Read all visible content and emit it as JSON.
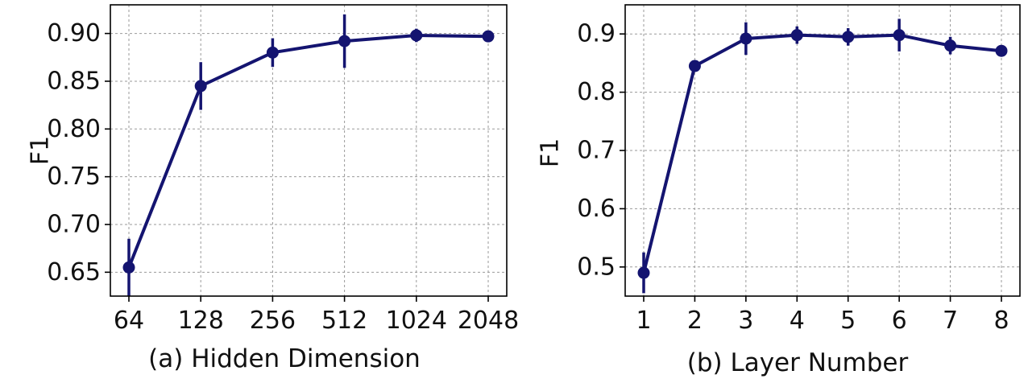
{
  "series_color": "#141470",
  "chart_data": [
    {
      "type": "line",
      "categories": [
        "64",
        "128",
        "256",
        "512",
        "1024",
        "2048"
      ],
      "values": [
        0.655,
        0.845,
        0.88,
        0.892,
        0.898,
        0.897
      ],
      "errors": [
        0.03,
        0.025,
        0.015,
        0.028,
        0.007,
        0.005
      ],
      "ylim": [
        0.625,
        0.93
      ],
      "yticks": [
        0.65,
        0.7,
        0.75,
        0.8,
        0.85,
        0.9
      ],
      "ytick_labels": [
        "0.65",
        "0.70",
        "0.75",
        "0.80",
        "0.85",
        "0.90"
      ],
      "ylabel": "F1",
      "xlabel": "(a) Hidden Dimension",
      "grid": true
    },
    {
      "type": "line",
      "categories": [
        "1",
        "2",
        "3",
        "4",
        "5",
        "6",
        "7",
        "8"
      ],
      "values": [
        0.49,
        0.845,
        0.892,
        0.898,
        0.895,
        0.898,
        0.88,
        0.871
      ],
      "errors": [
        0.035,
        0.008,
        0.028,
        0.015,
        0.015,
        0.028,
        0.015,
        0.006
      ],
      "ylim": [
        0.45,
        0.95
      ],
      "yticks": [
        0.5,
        0.6,
        0.7,
        0.8,
        0.9
      ],
      "ytick_labels": [
        "0.5",
        "0.6",
        "0.7",
        "0.8",
        "0.9"
      ],
      "ylabel": "F1",
      "xlabel": "(b) Layer Number",
      "grid": true
    }
  ]
}
